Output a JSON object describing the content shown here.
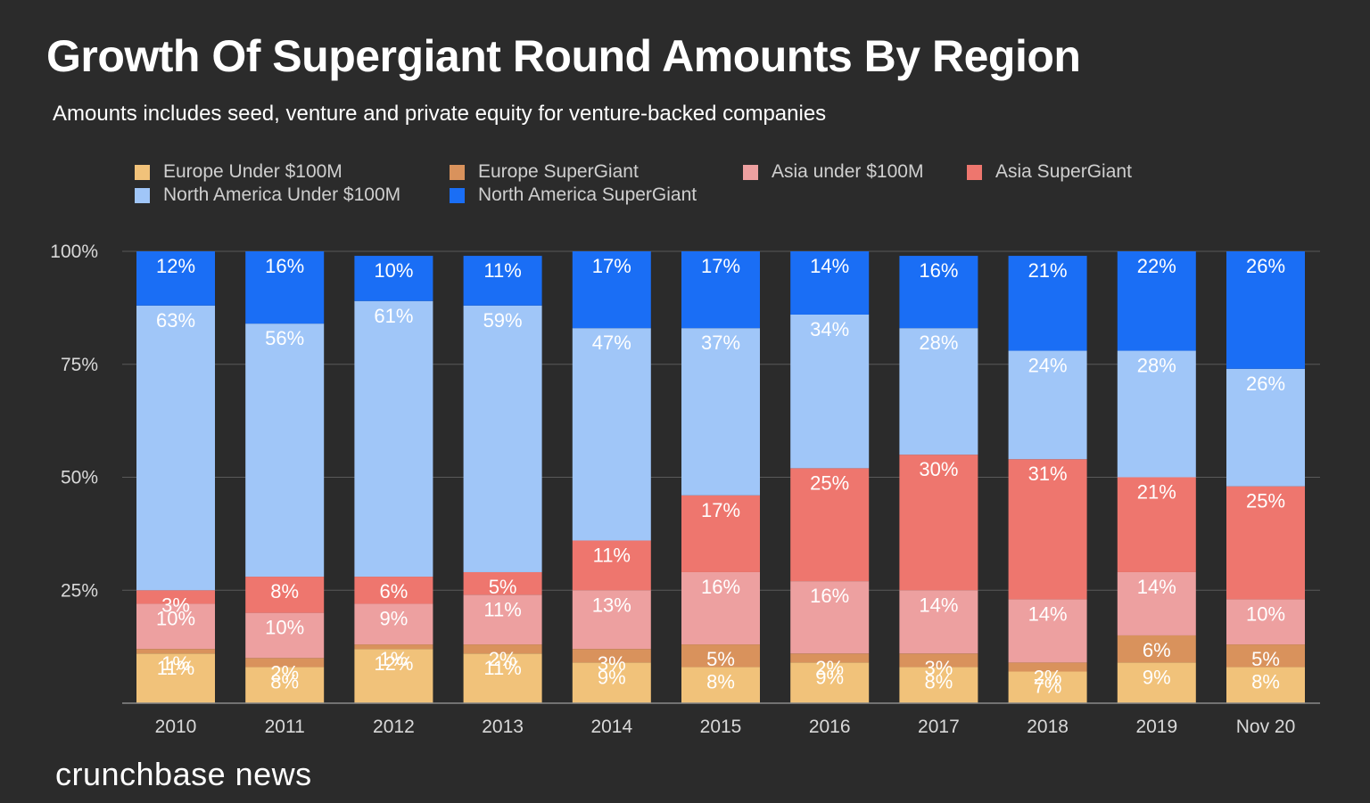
{
  "title": "Growth Of Supergiant Round Amounts By Region",
  "subtitle": "Amounts includes seed, venture and private equity for venture-backed companies",
  "brand": "crunchbase news",
  "chart_data": {
    "type": "bar",
    "stacked": true,
    "percent": true,
    "title": "Growth Of Supergiant Round Amounts By Region",
    "subtitle": "Amounts includes seed, venture and private equity for venture-backed companies",
    "categories": [
      "2010",
      "2011",
      "2012",
      "2013",
      "2014",
      "2015",
      "2016",
      "2017",
      "2018",
      "2019",
      "Nov 20"
    ],
    "y_ticks": [
      "100%",
      "75%",
      "50%",
      "25%"
    ],
    "ylim": [
      0,
      100
    ],
    "grid": true,
    "legend_position": "top",
    "legend": [
      "Europe Under $100M",
      "Europe SuperGiant",
      "Asia under $100M",
      "Asia SuperGiant",
      "North America Under $100M",
      "North America SuperGiant"
    ],
    "series": [
      {
        "name": "Europe Under $100M",
        "color": "#f1c27a",
        "values": [
          11,
          8,
          12,
          11,
          9,
          8,
          9,
          8,
          7,
          9,
          8
        ],
        "labels": [
          "11%",
          "8%",
          "12%",
          "11%",
          "9%",
          "8%",
          "9%",
          "8%",
          "7%",
          "9%",
          "8%"
        ]
      },
      {
        "name": "Europe SuperGiant",
        "color": "#d9925c",
        "values": [
          1,
          2,
          1,
          2,
          3,
          5,
          2,
          3,
          2,
          6,
          5
        ],
        "labels": [
          "1%",
          "2%",
          "1%",
          "2%",
          "3%",
          "5%",
          "2%",
          "3%",
          "2%",
          "6%",
          "5%"
        ]
      },
      {
        "name": "Asia under $100M",
        "color": "#eda0a0",
        "values": [
          10,
          10,
          9,
          11,
          13,
          16,
          16,
          14,
          14,
          14,
          10
        ],
        "labels": [
          "10%",
          "10%",
          "9%",
          "11%",
          "13%",
          "16%",
          "16%",
          "14%",
          "14%",
          "14%",
          "10%"
        ]
      },
      {
        "name": "Asia SuperGiant",
        "color": "#ee766e",
        "values": [
          3,
          8,
          6,
          5,
          11,
          17,
          25,
          30,
          31,
          21,
          25
        ],
        "labels": [
          "3%",
          "8%",
          "6%",
          "5%",
          "11%",
          "17%",
          "25%",
          "30%",
          "31%",
          "21%",
          "25%"
        ]
      },
      {
        "name": "North America Under $100M",
        "color": "#a0c6f8",
        "values": [
          63,
          56,
          61,
          59,
          47,
          37,
          34,
          28,
          24,
          28,
          26
        ],
        "labels": [
          "63%",
          "56%",
          "61%",
          "59%",
          "47%",
          "37%",
          "34%",
          "28%",
          "24%",
          "28%",
          "26%"
        ]
      },
      {
        "name": "North America SuperGiant",
        "color": "#1a6ef5",
        "values": [
          12,
          16,
          10,
          11,
          17,
          17,
          14,
          16,
          21,
          22,
          26
        ],
        "labels": [
          "12%",
          "16%",
          "10%",
          "11%",
          "17%",
          "17%",
          "14%",
          "16%",
          "21%",
          "22%",
          "26%"
        ]
      }
    ]
  }
}
